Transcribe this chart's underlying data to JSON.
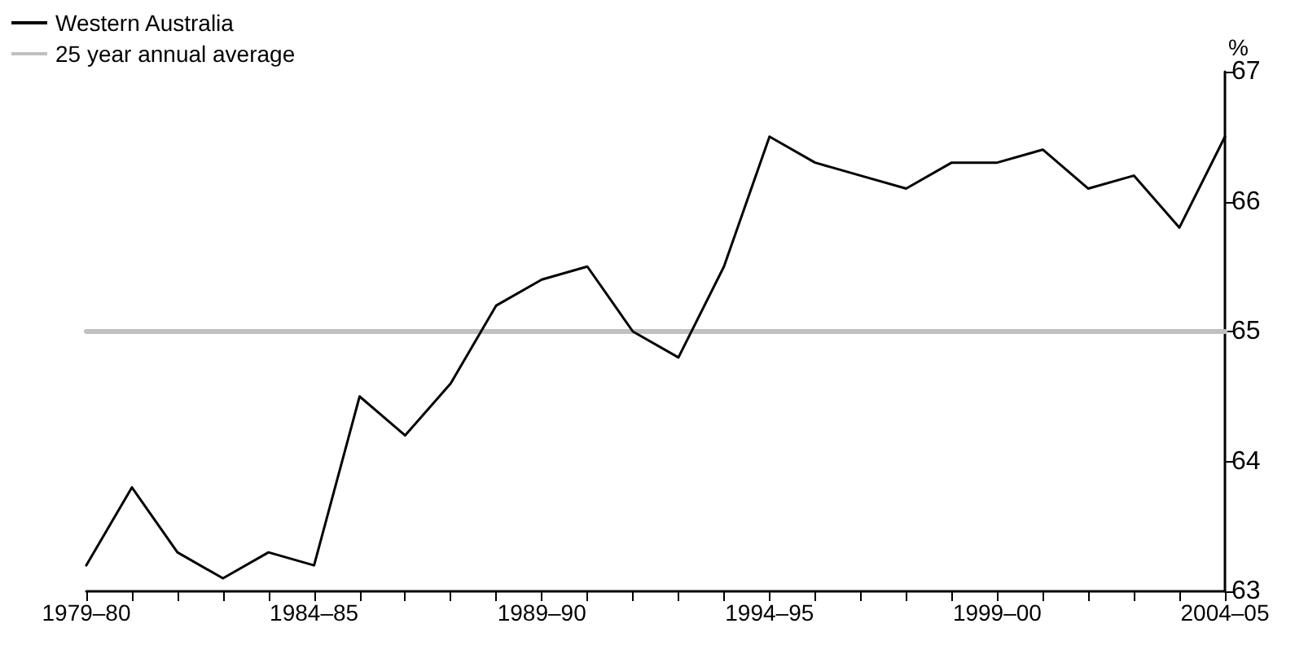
{
  "chart_data": {
    "type": "line",
    "ylabel": "%",
    "categories": [
      "1979–80",
      null,
      null,
      null,
      null,
      "1984–85",
      null,
      null,
      null,
      null,
      "1989–90",
      null,
      null,
      null,
      null,
      "1994–95",
      null,
      null,
      null,
      null,
      "1999–00",
      null,
      null,
      null,
      null,
      "2004–05"
    ],
    "series": [
      {
        "name": "Western Australia",
        "color": "#000000",
        "values": [
          63.2,
          63.8,
          63.3,
          63.1,
          63.3,
          63.2,
          64.5,
          64.2,
          64.6,
          65.2,
          65.4,
          65.5,
          65.0,
          64.8,
          65.5,
          66.5,
          66.3,
          66.2,
          66.1,
          66.3,
          66.3,
          66.4,
          66.1,
          66.2,
          65.8,
          66.5
        ]
      },
      {
        "name": "25 year annual average",
        "color": "#c0c0c0",
        "values": [
          65,
          65,
          65,
          65,
          65,
          65,
          65,
          65,
          65,
          65,
          65,
          65,
          65,
          65,
          65,
          65,
          65,
          65,
          65,
          65,
          65,
          65,
          65,
          65,
          65,
          65
        ]
      }
    ],
    "ylim": [
      63,
      67
    ],
    "yticks": [
      63,
      64,
      65,
      66,
      67
    ],
    "grid": false,
    "legend": "top left",
    "marker": "none",
    "line_style": "solid"
  }
}
